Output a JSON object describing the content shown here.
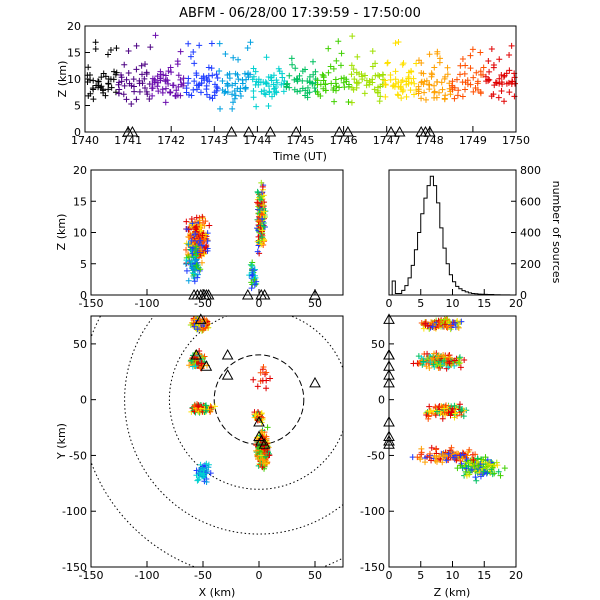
{
  "title": "ABFM - 06/28/00 17:39:59 - 17:50:00",
  "chart_data": [
    {
      "panel": "time-height",
      "type": "scatter",
      "marker": "+",
      "xlabel": "Time (UT)",
      "ylabel": "Z (km)",
      "xlim": [
        1740,
        1750
      ],
      "ylim": [
        0,
        20
      ],
      "xticks": [
        "1740",
        "1741",
        "1742",
        "1743",
        "1744",
        "1745",
        "1746",
        "1747",
        "1748",
        "1749",
        "1750"
      ],
      "yticks": [
        "0",
        "5",
        "10",
        "15",
        "20"
      ],
      "color_by_time": [
        "#000000",
        "#4b0082",
        "#6a0dad",
        "#1e3cff",
        "#009fe0",
        "#00d0d0",
        "#00c060",
        "#40d000",
        "#a0e000",
        "#ffe000",
        "#ffa000",
        "#ff5000",
        "#e00000"
      ],
      "stations_time": [
        1741.0,
        1741.1,
        1743.4,
        1743.8,
        1744.3,
        1744.9,
        1745.9,
        1746.1,
        1747.1,
        1747.3,
        1747.8,
        1747.9,
        1748.0
      ]
    },
    {
      "panel": "x-z",
      "type": "scatter",
      "xlim": [
        -150,
        75
      ],
      "ylim": [
        0,
        20
      ],
      "ylabel": "Z (km)",
      "xticks": [
        "-150",
        "-100",
        "-50",
        "0",
        "50"
      ],
      "yticks": [
        "0",
        "5",
        "10",
        "15",
        "20"
      ],
      "stations_x": [
        -58,
        -55,
        -52,
        -49,
        -47,
        -45,
        -10,
        2,
        5,
        50
      ]
    },
    {
      "panel": "histogram",
      "type": "line",
      "xlim": [
        0,
        20
      ],
      "ylim": [
        0,
        800
      ],
      "ylabel": "number of sources",
      "xticks": [
        "0",
        "5",
        "10",
        "15",
        "20"
      ],
      "yticks": [
        "0",
        "200",
        "400",
        "600",
        "800"
      ],
      "bin_width": 0.5,
      "counts": [
        0,
        90,
        10,
        10,
        30,
        60,
        110,
        190,
        290,
        400,
        520,
        620,
        700,
        760,
        700,
        590,
        430,
        300,
        200,
        130,
        85,
        55,
        40,
        28,
        20,
        14,
        10,
        8,
        6,
        5,
        4,
        3,
        3,
        2,
        2,
        1,
        1,
        1,
        0,
        0
      ]
    },
    {
      "panel": "plan",
      "type": "scatter",
      "xlabel": "X (km)",
      "ylabel": "Y (km)",
      "xlim": [
        -150,
        75
      ],
      "ylim": [
        -150,
        75
      ],
      "xticks": [
        "-150",
        "-100",
        "-50",
        "0",
        "50"
      ],
      "yticks": [
        "-150",
        "-100",
        "-50",
        "0",
        "50"
      ],
      "range_rings_km": [
        40,
        80,
        120,
        160
      ],
      "stations": [
        [
          -52,
          72
        ],
        [
          -47,
          30
        ],
        [
          -56,
          40
        ],
        [
          -28,
          40
        ],
        [
          -28,
          22
        ],
        [
          50,
          15
        ],
        [
          0,
          -20
        ],
        [
          0,
          -33
        ],
        [
          2,
          -37
        ],
        [
          5,
          -40
        ]
      ]
    },
    {
      "panel": "y-z",
      "type": "scatter",
      "xlabel": "Z (km)",
      "xlim": [
        0,
        20
      ],
      "ylim": [
        -150,
        75
      ],
      "xticks": [
        "0",
        "5",
        "10",
        "15",
        "20"
      ],
      "yticks": [
        "-150",
        "-100",
        "-50",
        "0",
        "50"
      ]
    }
  ]
}
